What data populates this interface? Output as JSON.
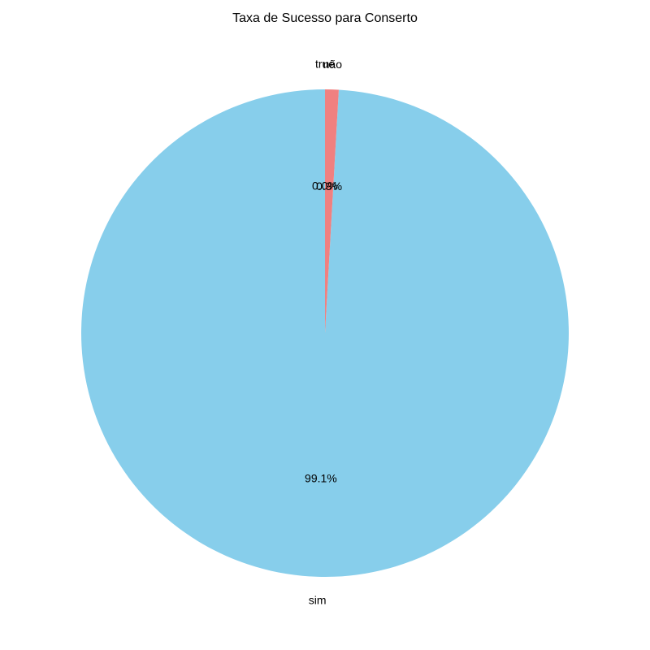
{
  "chart_data": {
    "type": "pie",
    "title": "Taxa de Sucesso para Conserto",
    "labels": [
      "sim",
      "não",
      "true"
    ],
    "values": [
      99.1,
      0.9,
      0.0
    ],
    "percent_labels": [
      "99.1%",
      "0.9%",
      "0.0%"
    ],
    "colors": [
      "#87CEEB",
      "#F08080",
      "#90EE90"
    ],
    "start_angle_deg": 90,
    "direction": "counterclockwise",
    "legend": "none"
  }
}
